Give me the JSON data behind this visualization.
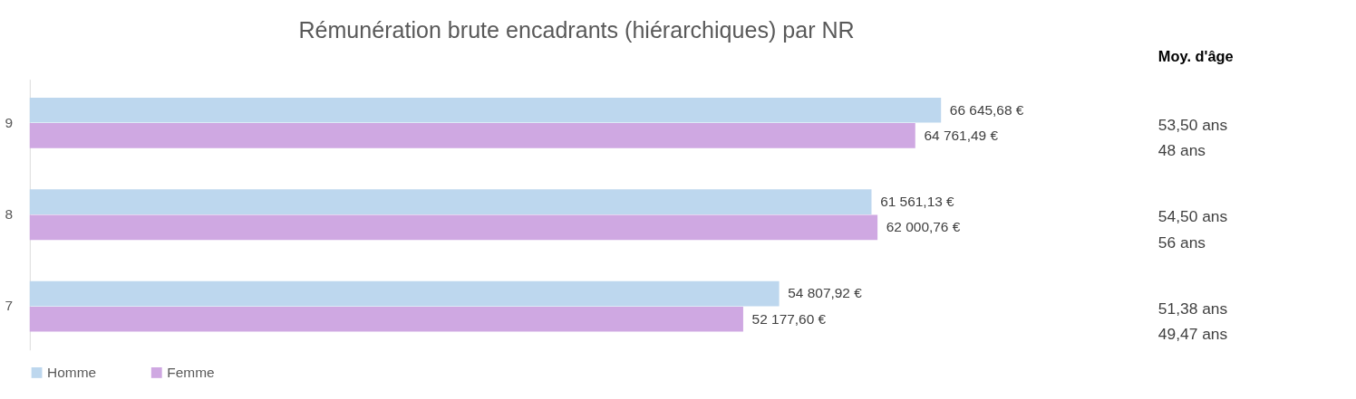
{
  "chart_data": {
    "type": "bar",
    "orientation": "horizontal",
    "title": "Rémunération brute encadrants (hiérarchiques) par NR",
    "categories": [
      "9",
      "8",
      "7"
    ],
    "series": [
      {
        "name": "Homme",
        "color": "#bdd7ee",
        "values": [
          66645.68,
          61561.13,
          54807.92
        ],
        "value_labels": [
          "66 645,68 €",
          "61 561,13 €",
          "54 807,92 €"
        ]
      },
      {
        "name": "Femme",
        "color": "#cfa8e2",
        "values": [
          64761.49,
          62000.76,
          52177.6
        ],
        "value_labels": [
          "64 761,49 €",
          "62 000,76 €",
          "52 177,60 €"
        ]
      }
    ],
    "tick_labels": "y",
    "grid": false,
    "legend": "bottom",
    "annotations": [
      "Moy. d'âge",
      "53,50 ans",
      "48 ans",
      "54,50 ans",
      "56 ans",
      "51,38 ans",
      "49,47 ans"
    ]
  }
}
